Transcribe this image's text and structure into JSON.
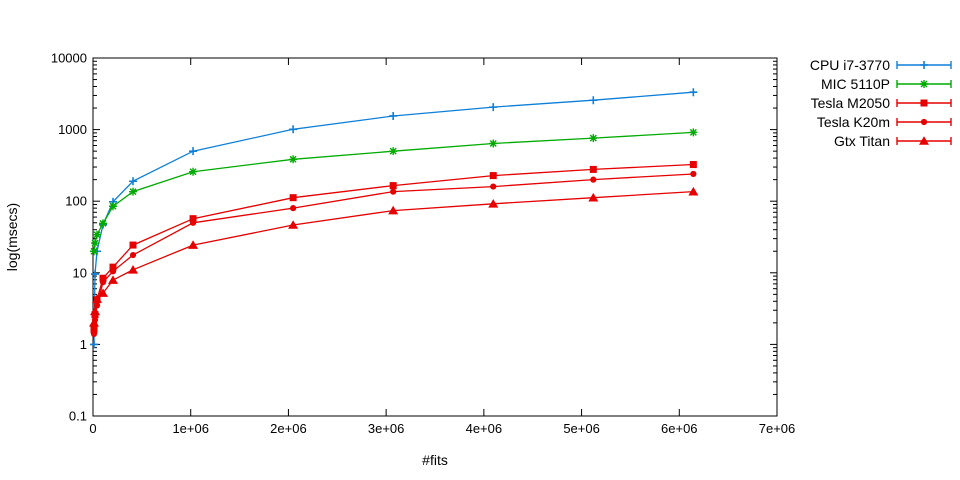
{
  "chart_data": {
    "type": "line",
    "style": "errorbars",
    "title": "",
    "xlabel": "#fits",
    "ylabel": "log(msecs)",
    "x_axis": {
      "min": 0,
      "max": 7000000,
      "tick_values": [
        0,
        1000000,
        2000000,
        3000000,
        4000000,
        5000000,
        6000000,
        7000000
      ],
      "tick_labels": [
        "0",
        "1e+06",
        "2e+06",
        "3e+06",
        "4e+06",
        "5e+06",
        "6e+06",
        "7e+06"
      ]
    },
    "y_axis": {
      "scale": "log",
      "min": 0.1,
      "max": 10000,
      "tick_values": [
        0.1,
        1,
        10,
        100,
        1000,
        10000
      ],
      "tick_labels": [
        "0.1",
        "1",
        "10",
        "100",
        "1000",
        "10000"
      ]
    },
    "grid": false,
    "legend_position": "outside-right-top",
    "colors": {
      "cpu_blue": "#0e7fd8",
      "mic_green": "#00ab00",
      "gpu_red": "#e60000",
      "axis_black": "#000000"
    },
    "x_shared": [
      10240,
      20480,
      40960,
      102400,
      204800,
      409600,
      1024000,
      2048000,
      3072000,
      4096000,
      5120000,
      6144000
    ],
    "series": [
      {
        "name": "CPU i7-3770",
        "color": "#0e7fd8",
        "marker": "plus",
        "x": [
          10240,
          20480,
          40960,
          102400,
          204800,
          409600,
          1024000,
          2048000,
          3072000,
          4096000,
          5120000,
          6144000
        ],
        "y": [
          1.0,
          9.6,
          20,
          47,
          98,
          190,
          500,
          1010,
          1550,
          2060,
          2570,
          3330
        ]
      },
      {
        "name": "MIC 5110P",
        "color": "#00ab00",
        "marker": "asterisk",
        "x": [
          10240,
          20480,
          40960,
          102400,
          204800,
          409600,
          1024000,
          2048000,
          3072000,
          4096000,
          5120000,
          6144000
        ],
        "y": [
          20,
          26,
          34,
          49,
          85,
          136,
          258,
          385,
          500,
          640,
          760,
          915
        ]
      },
      {
        "name": "Tesla M2050",
        "color": "#e60000",
        "marker": "square",
        "x": [
          10240,
          20480,
          40960,
          102400,
          204800,
          409600,
          1024000,
          2048000,
          3072000,
          4096000,
          5120000,
          6144000
        ],
        "y": [
          1.6,
          2.6,
          4.2,
          8.4,
          12.0,
          24.4,
          57,
          112,
          165,
          228,
          278,
          325
        ]
      },
      {
        "name": "Tesla K20m",
        "color": "#e60000",
        "marker": "dot",
        "x": [
          10240,
          20480,
          40960,
          102400,
          204800,
          409600,
          1024000,
          2048000,
          3072000,
          4096000,
          5120000,
          6144000
        ],
        "y": [
          1.4,
          2.2,
          3.5,
          7.4,
          10.5,
          17.7,
          50,
          80,
          136,
          160,
          200,
          240
        ]
      },
      {
        "name": "Gtx Titan",
        "color": "#e60000",
        "marker": "triangle",
        "x": [
          10240,
          20480,
          40960,
          102400,
          204800,
          409600,
          1024000,
          2048000,
          3072000,
          4096000,
          5120000,
          6144000
        ],
        "y": [
          2.0,
          2.9,
          4.3,
          5.2,
          7.9,
          11,
          24.4,
          46.5,
          74,
          92,
          112,
          136
        ]
      }
    ]
  }
}
